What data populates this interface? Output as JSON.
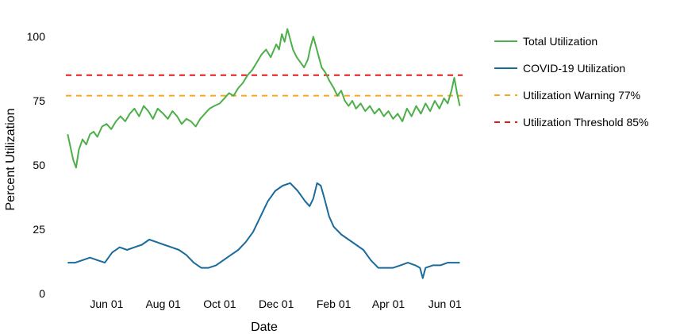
{
  "chart_data": {
    "type": "line",
    "xlabel": "Date",
    "ylabel": "Percent Utilization",
    "xlim": [
      "2020-04-18",
      "2021-06-20"
    ],
    "ylim": [
      0,
      105
    ],
    "grid": false,
    "legend_position": "right",
    "x_ticks": [
      {
        "date": "2020-06-01",
        "label": "Jun 01"
      },
      {
        "date": "2020-08-01",
        "label": "Aug 01"
      },
      {
        "date": "2020-10-01",
        "label": "Oct 01"
      },
      {
        "date": "2020-12-01",
        "label": "Dec 01"
      },
      {
        "date": "2021-02-01",
        "label": "Feb 01"
      },
      {
        "date": "2021-04-01",
        "label": "Apr 01"
      },
      {
        "date": "2021-06-01",
        "label": "Jun 01"
      }
    ],
    "y_ticks": [
      0,
      25,
      50,
      75,
      100
    ],
    "series": [
      {
        "name": "Total Utilization",
        "color": "#4daf4a",
        "points": [
          [
            "2020-04-20",
            62
          ],
          [
            "2020-04-23",
            57
          ],
          [
            "2020-04-26",
            52
          ],
          [
            "2020-04-29",
            49
          ],
          [
            "2020-05-02",
            56
          ],
          [
            "2020-05-06",
            60
          ],
          [
            "2020-05-10",
            58
          ],
          [
            "2020-05-14",
            62
          ],
          [
            "2020-05-18",
            63
          ],
          [
            "2020-05-22",
            61
          ],
          [
            "2020-05-27",
            65
          ],
          [
            "2020-06-01",
            66
          ],
          [
            "2020-06-06",
            64
          ],
          [
            "2020-06-11",
            67
          ],
          [
            "2020-06-16",
            69
          ],
          [
            "2020-06-21",
            67
          ],
          [
            "2020-06-26",
            70
          ],
          [
            "2020-07-01",
            72
          ],
          [
            "2020-07-06",
            69
          ],
          [
            "2020-07-11",
            73
          ],
          [
            "2020-07-16",
            71
          ],
          [
            "2020-07-21",
            68
          ],
          [
            "2020-07-26",
            72
          ],
          [
            "2020-08-01",
            70
          ],
          [
            "2020-08-06",
            68
          ],
          [
            "2020-08-11",
            71
          ],
          [
            "2020-08-16",
            69
          ],
          [
            "2020-08-21",
            66
          ],
          [
            "2020-08-26",
            68
          ],
          [
            "2020-08-31",
            67
          ],
          [
            "2020-09-05",
            65
          ],
          [
            "2020-09-10",
            68
          ],
          [
            "2020-09-15",
            70
          ],
          [
            "2020-09-20",
            72
          ],
          [
            "2020-09-25",
            73
          ],
          [
            "2020-10-01",
            74
          ],
          [
            "2020-10-06",
            76
          ],
          [
            "2020-10-11",
            78
          ],
          [
            "2020-10-16",
            77
          ],
          [
            "2020-10-21",
            80
          ],
          [
            "2020-10-26",
            82
          ],
          [
            "2020-10-31",
            85
          ],
          [
            "2020-11-05",
            87
          ],
          [
            "2020-11-10",
            90
          ],
          [
            "2020-11-15",
            93
          ],
          [
            "2020-11-20",
            95
          ],
          [
            "2020-11-25",
            92
          ],
          [
            "2020-12-01",
            97
          ],
          [
            "2020-12-04",
            95
          ],
          [
            "2020-12-07",
            101
          ],
          [
            "2020-12-10",
            98
          ],
          [
            "2020-12-13",
            103
          ],
          [
            "2020-12-16",
            99
          ],
          [
            "2020-12-19",
            95
          ],
          [
            "2020-12-23",
            92
          ],
          [
            "2020-12-27",
            90
          ],
          [
            "2020-12-31",
            88
          ],
          [
            "2021-01-04",
            91
          ],
          [
            "2021-01-07",
            96
          ],
          [
            "2021-01-10",
            100
          ],
          [
            "2021-01-13",
            96
          ],
          [
            "2021-01-16",
            92
          ],
          [
            "2021-01-19",
            88
          ],
          [
            "2021-01-23",
            86
          ],
          [
            "2021-01-27",
            83
          ],
          [
            "2021-02-01",
            80
          ],
          [
            "2021-02-05",
            77
          ],
          [
            "2021-02-09",
            79
          ],
          [
            "2021-02-13",
            75
          ],
          [
            "2021-02-17",
            73
          ],
          [
            "2021-02-21",
            75
          ],
          [
            "2021-02-25",
            72
          ],
          [
            "2021-03-02",
            74
          ],
          [
            "2021-03-07",
            71
          ],
          [
            "2021-03-12",
            73
          ],
          [
            "2021-03-17",
            70
          ],
          [
            "2021-03-22",
            72
          ],
          [
            "2021-03-27",
            69
          ],
          [
            "2021-04-01",
            71
          ],
          [
            "2021-04-06",
            68
          ],
          [
            "2021-04-11",
            70
          ],
          [
            "2021-04-16",
            67
          ],
          [
            "2021-04-21",
            72
          ],
          [
            "2021-04-26",
            69
          ],
          [
            "2021-05-01",
            73
          ],
          [
            "2021-05-06",
            70
          ],
          [
            "2021-05-11",
            74
          ],
          [
            "2021-05-16",
            71
          ],
          [
            "2021-05-21",
            75
          ],
          [
            "2021-05-26",
            72
          ],
          [
            "2021-05-31",
            76
          ],
          [
            "2021-06-04",
            74
          ],
          [
            "2021-06-08",
            79
          ],
          [
            "2021-06-11",
            84
          ],
          [
            "2021-06-14",
            78
          ],
          [
            "2021-06-17",
            73
          ]
        ]
      },
      {
        "name": "COVID-19 Utilization",
        "color": "#1a6b9a",
        "points": [
          [
            "2020-04-20",
            12
          ],
          [
            "2020-04-28",
            12
          ],
          [
            "2020-05-06",
            13
          ],
          [
            "2020-05-14",
            14
          ],
          [
            "2020-05-22",
            13
          ],
          [
            "2020-05-30",
            12
          ],
          [
            "2020-06-07",
            16
          ],
          [
            "2020-06-15",
            18
          ],
          [
            "2020-06-23",
            17
          ],
          [
            "2020-07-01",
            18
          ],
          [
            "2020-07-09",
            19
          ],
          [
            "2020-07-17",
            21
          ],
          [
            "2020-07-25",
            20
          ],
          [
            "2020-08-02",
            19
          ],
          [
            "2020-08-10",
            18
          ],
          [
            "2020-08-18",
            17
          ],
          [
            "2020-08-26",
            15
          ],
          [
            "2020-09-03",
            12
          ],
          [
            "2020-09-11",
            10
          ],
          [
            "2020-09-19",
            10
          ],
          [
            "2020-09-27",
            11
          ],
          [
            "2020-10-05",
            13
          ],
          [
            "2020-10-13",
            15
          ],
          [
            "2020-10-21",
            17
          ],
          [
            "2020-10-29",
            20
          ],
          [
            "2020-11-06",
            24
          ],
          [
            "2020-11-14",
            30
          ],
          [
            "2020-11-22",
            36
          ],
          [
            "2020-11-30",
            40
          ],
          [
            "2020-12-08",
            42
          ],
          [
            "2020-12-16",
            43
          ],
          [
            "2020-12-24",
            40
          ],
          [
            "2021-01-01",
            36
          ],
          [
            "2021-01-06",
            34
          ],
          [
            "2021-01-10",
            37
          ],
          [
            "2021-01-14",
            43
          ],
          [
            "2021-01-18",
            42
          ],
          [
            "2021-01-22",
            37
          ],
          [
            "2021-01-27",
            30
          ],
          [
            "2021-02-01",
            26
          ],
          [
            "2021-02-09",
            23
          ],
          [
            "2021-02-17",
            21
          ],
          [
            "2021-02-25",
            19
          ],
          [
            "2021-03-05",
            17
          ],
          [
            "2021-03-13",
            13
          ],
          [
            "2021-03-21",
            10
          ],
          [
            "2021-03-29",
            10
          ],
          [
            "2021-04-06",
            10
          ],
          [
            "2021-04-14",
            11
          ],
          [
            "2021-04-22",
            12
          ],
          [
            "2021-04-30",
            11
          ],
          [
            "2021-05-05",
            10
          ],
          [
            "2021-05-08",
            6
          ],
          [
            "2021-05-11",
            10
          ],
          [
            "2021-05-19",
            11
          ],
          [
            "2021-05-27",
            11
          ],
          [
            "2021-06-04",
            12
          ],
          [
            "2021-06-12",
            12
          ],
          [
            "2021-06-17",
            12
          ]
        ]
      }
    ],
    "reference_lines": [
      {
        "name": "Utilization Warning 77%",
        "value": 77,
        "color": "#f5a623",
        "dash": "dashed"
      },
      {
        "name": "Utilization Threshold 85%",
        "value": 85,
        "color": "#e41a1c",
        "dash": "dashed"
      }
    ]
  }
}
